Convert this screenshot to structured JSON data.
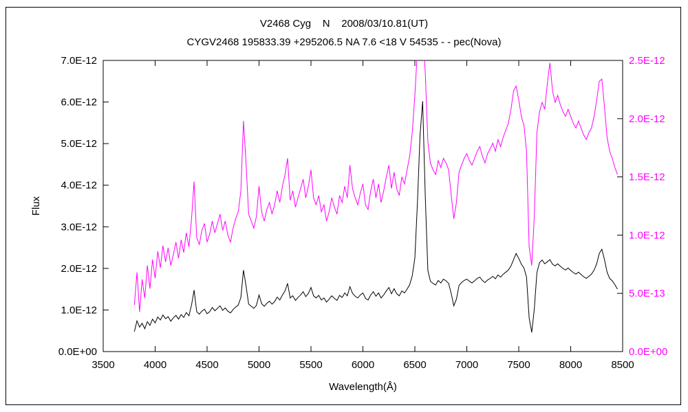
{
  "titles": {
    "line1": "V2468 Cyg    N    2008/03/10.81(UT)",
    "line2": "CYGV2468 195833.39 +295206.5 NA 7.6 <18 V 54535 - - pec(Nova)"
  },
  "chart_data": {
    "type": "line",
    "title": "V2468 Cyg    N    2008/03/10.81(UT)",
    "subtitle": "CYGV2468 195833.39 +295206.5 NA 7.6 <18 V 54535 - - pec(Nova)",
    "xlabel": "Wavelength(Å)",
    "ylabel_left": "Flux",
    "grid": false,
    "legend": "none",
    "x_range": [
      3500,
      8500
    ],
    "x_ticks": [
      3500,
      4000,
      4500,
      5000,
      5500,
      6000,
      6500,
      7000,
      7500,
      8000,
      8500
    ],
    "left_axis": {
      "color": "#000000",
      "range": [
        0,
        7e-12
      ],
      "tick_values": [
        0,
        1e-12,
        2e-12,
        3e-12,
        4e-12,
        5e-12,
        6e-12,
        7e-12
      ],
      "tick_labels": [
        "0.0E+00",
        "1.0E-12",
        "2.0E-12",
        "3.0E-12",
        "4.0E-12",
        "5.0E-12",
        "6.0E-12",
        "7.0E-12"
      ]
    },
    "right_axis": {
      "color": "#ff00ff",
      "range": [
        0,
        2.5e-12
      ],
      "tick_values": [
        0,
        5e-13,
        1e-12,
        1.5e-12,
        2e-12,
        2.5e-12
      ],
      "tick_labels": [
        "0.0E+00",
        "5.0E-13",
        "1.0E-12",
        "1.5E-12",
        "2.0E-12",
        "2.5E-12"
      ]
    },
    "series": [
      {
        "name": "black-spectrum",
        "axis": "left",
        "color": "#000000",
        "unit": 1e-13,
        "x_start": 3800,
        "x_step": 25,
        "values": [
          4.8,
          7.4,
          5.9,
          6.8,
          5.5,
          7.2,
          6.3,
          7.8,
          6.9,
          8.3,
          7.6,
          8.8,
          7.9,
          8.4,
          7.3,
          8.1,
          8.7,
          7.8,
          8.9,
          8.2,
          9.4,
          8.6,
          11.2,
          14.8,
          9.6,
          9.0,
          9.7,
          10.2,
          9.1,
          9.6,
          10.6,
          9.8,
          10.4,
          11.0,
          9.9,
          10.5,
          9.7,
          9.3,
          10.1,
          10.7,
          11.2,
          13.0,
          19.6,
          15.8,
          11.4,
          10.9,
          10.4,
          11.1,
          13.6,
          11.5,
          10.9,
          11.6,
          12.1,
          11.4,
          12.0,
          13.1,
          12.4,
          13.6,
          14.6,
          16.4,
          12.9,
          13.4,
          12.3,
          13.0,
          13.6,
          14.4,
          13.2,
          14.0,
          15.4,
          13.4,
          12.9,
          13.5,
          12.4,
          12.9,
          11.9,
          12.6,
          13.4,
          12.8,
          12.3,
          13.5,
          13.0,
          14.1,
          13.4,
          15.6,
          14.0,
          13.3,
          12.9,
          13.6,
          14.1,
          12.8,
          12.4,
          13.6,
          14.4,
          13.3,
          14.1,
          12.9,
          13.6,
          14.6,
          15.4,
          13.9,
          15.1,
          13.9,
          13.4,
          14.6,
          14.1,
          15.0,
          16.1,
          18.2,
          22.5,
          36.0,
          52.0,
          60.2,
          37.5,
          19.5,
          16.9,
          16.4,
          16.0,
          17.1,
          16.5,
          17.4,
          17.0,
          16.4,
          13.9,
          11.0,
          12.6,
          15.9,
          16.6,
          17.1,
          17.4,
          16.9,
          16.5,
          17.0,
          17.6,
          17.9,
          17.1,
          16.6,
          17.2,
          17.6,
          18.1,
          17.5,
          18.4,
          17.9,
          18.6,
          19.1,
          19.6,
          20.6,
          22.1,
          23.6,
          22.4,
          21.0,
          20.1,
          17.9,
          8.1,
          4.6,
          10.2,
          19.0,
          21.4,
          22.0,
          21.1,
          21.6,
          22.1,
          21.0,
          20.6,
          21.1,
          20.5,
          20.0,
          19.6,
          20.1,
          19.5,
          19.0,
          18.6,
          19.1,
          18.5,
          18.0,
          17.6,
          18.1,
          18.6,
          19.6,
          21.1,
          23.6,
          24.6,
          22.1,
          19.1,
          17.6,
          17.0,
          16.1,
          15.0
        ]
      },
      {
        "name": "magenta-spectrum",
        "axis": "right",
        "color": "#ff00ff",
        "unit": 1e-13,
        "x_start": 3800,
        "x_step": 25,
        "values": [
          4.0,
          6.8,
          3.4,
          6.2,
          4.6,
          7.4,
          5.4,
          7.9,
          6.3,
          8.6,
          7.2,
          9.1,
          7.7,
          8.9,
          7.4,
          8.3,
          9.4,
          8.0,
          9.6,
          8.5,
          10.2,
          9.0,
          11.4,
          14.6,
          9.8,
          9.2,
          10.4,
          11.0,
          9.4,
          10.1,
          11.2,
          10.2,
          11.0,
          11.8,
          10.4,
          11.2,
          10.0,
          9.4,
          10.6,
          11.4,
          12.0,
          13.8,
          19.8,
          16.2,
          11.8,
          11.2,
          10.6,
          11.6,
          14.2,
          12.0,
          11.2,
          12.2,
          12.8,
          11.8,
          12.6,
          13.8,
          12.8,
          14.2,
          15.2,
          16.6,
          13.0,
          13.8,
          12.4,
          13.2,
          14.0,
          14.8,
          13.2,
          14.2,
          15.6,
          13.2,
          12.6,
          13.4,
          12.0,
          12.6,
          11.2,
          12.0,
          13.2,
          12.4,
          11.8,
          13.4,
          12.8,
          14.2,
          13.2,
          16.0,
          14.0,
          13.2,
          12.6,
          13.6,
          14.4,
          12.6,
          12.2,
          13.8,
          14.8,
          13.2,
          14.4,
          12.8,
          13.8,
          15.0,
          16.0,
          14.0,
          15.4,
          14.0,
          13.4,
          15.0,
          14.4,
          15.6,
          16.8,
          18.8,
          22.0,
          26.0,
          27.0,
          27.5,
          24.0,
          18.0,
          16.2,
          15.6,
          15.2,
          16.4,
          15.8,
          16.6,
          16.2,
          15.6,
          13.4,
          11.4,
          12.8,
          15.4,
          16.0,
          16.6,
          17.0,
          16.4,
          16.0,
          16.6,
          17.2,
          17.6,
          16.8,
          16.2,
          17.0,
          17.4,
          17.9,
          17.2,
          18.2,
          17.6,
          18.4,
          19.0,
          19.6,
          20.8,
          22.4,
          22.8,
          21.6,
          20.2,
          19.4,
          17.2,
          9.0,
          7.4,
          11.6,
          18.8,
          20.6,
          21.4,
          20.8,
          23.0,
          24.8,
          22.4,
          21.4,
          22.0,
          21.2,
          20.6,
          20.2,
          20.8,
          20.2,
          19.6,
          19.2,
          19.8,
          19.2,
          18.6,
          18.2,
          18.8,
          19.2,
          20.2,
          21.6,
          23.2,
          23.4,
          21.0,
          18.4,
          17.2,
          16.6,
          15.8,
          15.2
        ]
      }
    ]
  }
}
